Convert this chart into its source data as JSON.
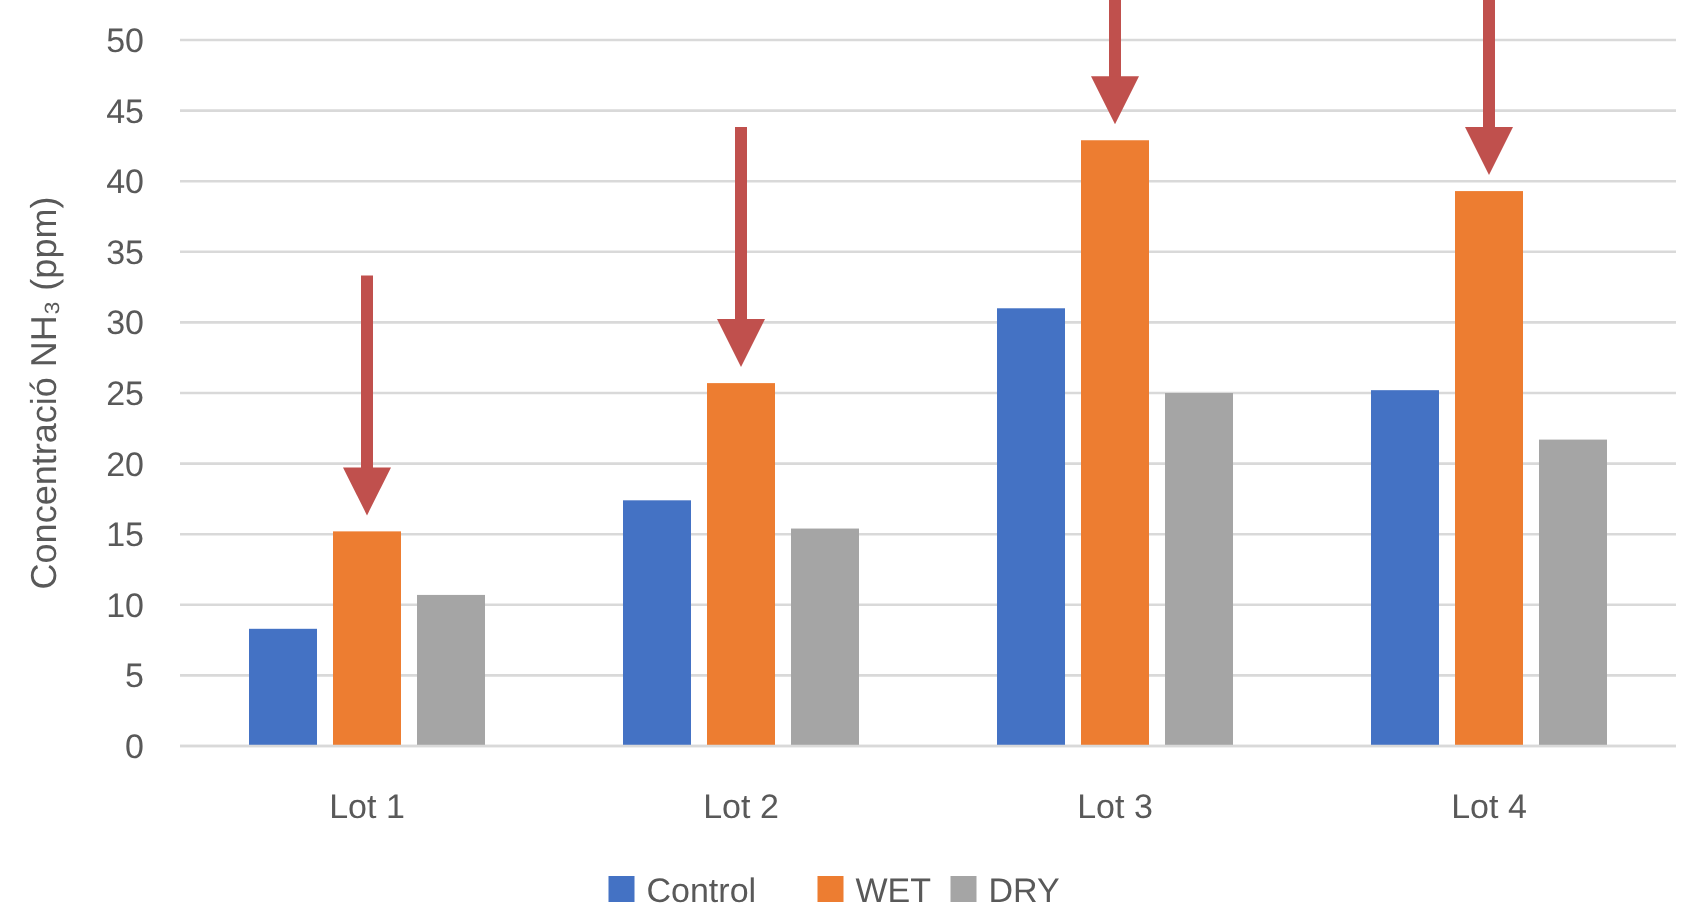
{
  "chart_data": {
    "type": "bar",
    "ylabel": "Concentració NH₃ (ppm)",
    "categories": [
      "Lot 1",
      "Lot 2",
      "Lot 3",
      "Lot 4"
    ],
    "series": [
      {
        "name": "Control",
        "color": "#4472c4",
        "values": [
          8.3,
          17.4,
          31.0,
          25.2
        ]
      },
      {
        "name": "WET",
        "color": "#ed7d31",
        "values": [
          15.2,
          25.7,
          42.9,
          39.3
        ]
      },
      {
        "name": "DRY",
        "color": "#a5a5a5",
        "values": [
          10.7,
          15.4,
          25.0,
          21.7
        ]
      }
    ],
    "ylim": [
      0,
      50
    ],
    "yticks": [
      0,
      5,
      10,
      15,
      20,
      25,
      30,
      35,
      40,
      45,
      50
    ],
    "grid": "y",
    "legend": "bottom"
  }
}
